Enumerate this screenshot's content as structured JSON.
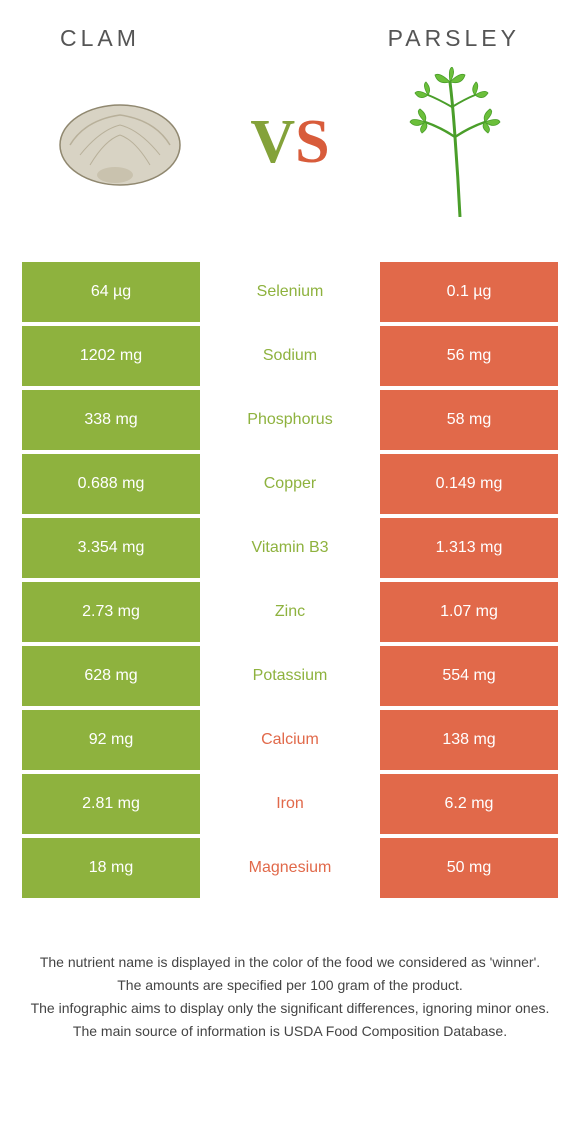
{
  "header": {
    "left_title": "CLAM",
    "right_title": "PARSLEY"
  },
  "vs": {
    "v": "V",
    "s": "S"
  },
  "colors": {
    "left_bg": "#8eb23e",
    "right_bg": "#e1694a",
    "mid_left_text": "#8eb23e",
    "mid_right_text": "#e1694a",
    "clam_fill": "#d4cfc0",
    "clam_stroke": "#a89f8a",
    "parsley_green": "#6bbf3a",
    "parsley_stem": "#4a9e2a"
  },
  "rows": [
    {
      "left": "64 µg",
      "mid": "Selenium",
      "right": "0.1 µg",
      "winner": "left"
    },
    {
      "left": "1202 mg",
      "mid": "Sodium",
      "right": "56 mg",
      "winner": "left"
    },
    {
      "left": "338 mg",
      "mid": "Phosphorus",
      "right": "58 mg",
      "winner": "left"
    },
    {
      "left": "0.688 mg",
      "mid": "Copper",
      "right": "0.149 mg",
      "winner": "left"
    },
    {
      "left": "3.354 mg",
      "mid": "Vitamin B3",
      "right": "1.313 mg",
      "winner": "left"
    },
    {
      "left": "2.73 mg",
      "mid": "Zinc",
      "right": "1.07 mg",
      "winner": "left"
    },
    {
      "left": "628 mg",
      "mid": "Potassium",
      "right": "554 mg",
      "winner": "left"
    },
    {
      "left": "92 mg",
      "mid": "Calcium",
      "right": "138 mg",
      "winner": "right"
    },
    {
      "left": "2.81 mg",
      "mid": "Iron",
      "right": "6.2 mg",
      "winner": "right"
    },
    {
      "left": "18 mg",
      "mid": "Magnesium",
      "right": "50 mg",
      "winner": "right"
    }
  ],
  "footer": {
    "line1": "The nutrient name is displayed in the color of the food we considered as 'winner'.",
    "line2": "The amounts are specified per 100 gram of the product.",
    "line3": "The infographic aims to display only the significant differences, ignoring minor ones.",
    "line4": "The main source of information is USDA Food Composition Database."
  }
}
